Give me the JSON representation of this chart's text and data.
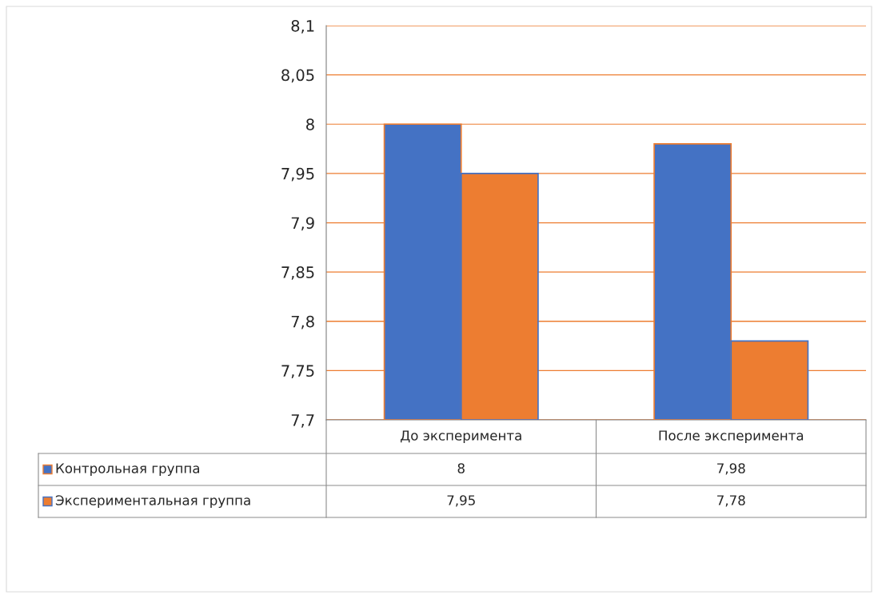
{
  "chart_data": {
    "type": "bar",
    "categories": [
      "До эксперимента",
      "После эксперимента"
    ],
    "series": [
      {
        "name": "Контрольная группа",
        "color": "#4472c4",
        "values": [
          8,
          7.98
        ],
        "value_labels": [
          "8",
          "7,98"
        ]
      },
      {
        "name": "Экспериментальная группа",
        "color": "#ed7d31",
        "values": [
          7.95,
          7.78
        ],
        "value_labels": [
          "7,95",
          "7,78"
        ]
      }
    ],
    "ylim": [
      7.7,
      8.1
    ],
    "yticks": [
      {
        "value": 7.7,
        "label": "7,7"
      },
      {
        "value": 7.75,
        "label": "7,75"
      },
      {
        "value": 7.8,
        "label": "7,8"
      },
      {
        "value": 7.85,
        "label": "7,85"
      },
      {
        "value": 7.9,
        "label": "7,9"
      },
      {
        "value": 7.95,
        "label": "7,95"
      },
      {
        "value": 8,
        "label": "8"
      },
      {
        "value": 8.05,
        "label": "8,05"
      },
      {
        "value": 8.1,
        "label": "8,1"
      }
    ],
    "grid": "y",
    "legend": "bottom"
  }
}
